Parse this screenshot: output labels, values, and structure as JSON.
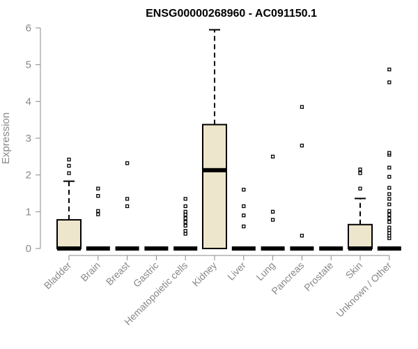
{
  "chart_data": {
    "type": "boxplot",
    "title": "ENSG00000268960 - AC091150.1",
    "xlabel": "",
    "ylabel": "Expression",
    "ylim": [
      0,
      6
    ],
    "yticks": [
      0,
      1,
      2,
      3,
      4,
      5,
      6
    ],
    "grid": false,
    "box_color": "#EDE6CC",
    "categories": [
      "Bladder",
      "Brain",
      "Breast",
      "Gastric",
      "Hematopoietic cells",
      "Kidney",
      "Liver",
      "Lung",
      "Pancreas",
      "Prostate",
      "Skin",
      "Unknown / Other"
    ],
    "boxes": [
      {
        "q1": 0,
        "median": 0,
        "q3": 0.78,
        "whisker_low": 0,
        "whisker_high": 1.83,
        "outliers": [
          2.05,
          2.25,
          2.42
        ]
      },
      {
        "q1": 0,
        "median": 0,
        "q3": 0,
        "whisker_low": 0,
        "whisker_high": 0,
        "outliers": [
          0.93,
          1.02,
          1.43,
          1.63
        ]
      },
      {
        "q1": 0,
        "median": 0,
        "q3": 0,
        "whisker_low": 0,
        "whisker_high": 0,
        "outliers": [
          1.15,
          1.35,
          2.32
        ]
      },
      {
        "q1": 0,
        "median": 0,
        "q3": 0,
        "whisker_low": 0,
        "whisker_high": 0,
        "outliers": []
      },
      {
        "q1": 0,
        "median": 0,
        "q3": 0,
        "whisker_low": 0,
        "whisker_high": 0,
        "outliers": [
          0.4,
          0.48,
          0.62,
          0.72,
          0.82,
          0.92,
          1.0,
          1.15,
          1.35
        ]
      },
      {
        "q1": 0,
        "median": 2.13,
        "q3": 3.37,
        "whisker_low": 0,
        "whisker_high": 5.95,
        "outliers": []
      },
      {
        "q1": 0,
        "median": 0,
        "q3": 0,
        "whisker_low": 0,
        "whisker_high": 0,
        "outliers": [
          0.6,
          0.9,
          1.15,
          1.6
        ]
      },
      {
        "q1": 0,
        "median": 0,
        "q3": 0,
        "whisker_low": 0,
        "whisker_high": 0,
        "outliers": [
          0.78,
          1.0,
          2.5
        ]
      },
      {
        "q1": 0,
        "median": 0,
        "q3": 0,
        "whisker_low": 0,
        "whisker_high": 0,
        "outliers": [
          0.35,
          2.8,
          3.85
        ]
      },
      {
        "q1": 0,
        "median": 0,
        "q3": 0,
        "whisker_low": 0,
        "whisker_high": 0,
        "outliers": []
      },
      {
        "q1": 0,
        "median": 0,
        "q3": 0.65,
        "whisker_low": 0,
        "whisker_high": 1.36,
        "outliers": [
          1.63,
          2.05,
          2.15
        ]
      },
      {
        "q1": 0,
        "median": 0,
        "q3": 0,
        "whisker_low": 0,
        "whisker_high": 0,
        "outliers": [
          0.28,
          0.35,
          0.42,
          0.5,
          0.57,
          0.72,
          0.82,
          0.92,
          1.02,
          1.2,
          1.35,
          1.48,
          1.65,
          1.95,
          2.2,
          2.55,
          2.6,
          4.52,
          4.87
        ]
      }
    ]
  }
}
